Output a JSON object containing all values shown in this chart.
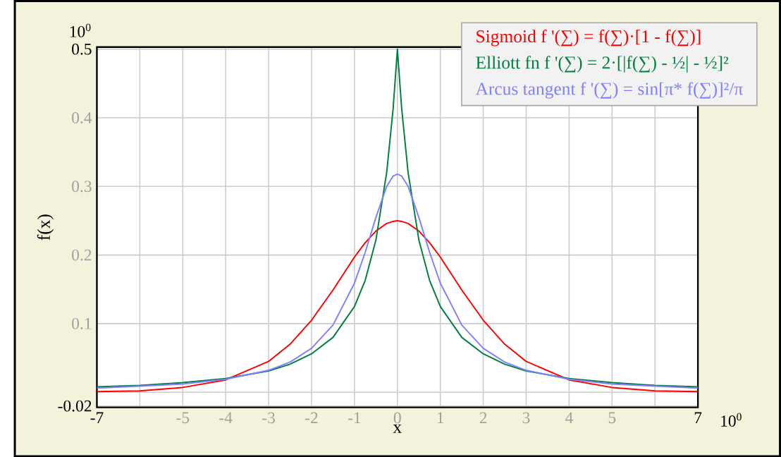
{
  "chart_data": {
    "type": "line",
    "xlabel": "x",
    "ylabel": "f(x)",
    "x": [
      -7,
      -6,
      -5,
      -4,
      -3,
      -2.5,
      -2,
      -1.5,
      -1,
      -0.75,
      -0.5,
      -0.25,
      -0.1,
      0,
      0.1,
      0.25,
      0.5,
      0.75,
      1,
      1.5,
      2,
      2.5,
      3,
      4,
      5,
      6,
      7
    ],
    "series": [
      {
        "name": "Sigmoid f '(∑) = f(∑)·[1 - f(∑)]",
        "color": "#ff0000",
        "values": [
          0.001,
          0.002,
          0.007,
          0.018,
          0.045,
          0.07,
          0.105,
          0.149,
          0.197,
          0.218,
          0.235,
          0.246,
          0.249,
          0.25,
          0.249,
          0.246,
          0.235,
          0.218,
          0.197,
          0.149,
          0.105,
          0.07,
          0.045,
          0.018,
          0.007,
          0.002,
          0.001
        ]
      },
      {
        "name": "Elliott fn  f '(∑) = 2·[|f(∑) - ½| - ½]²",
        "color": "#007f3f",
        "values": [
          0.008,
          0.01,
          0.014,
          0.02,
          0.031,
          0.041,
          0.056,
          0.08,
          0.125,
          0.163,
          0.222,
          0.32,
          0.413,
          0.5,
          0.413,
          0.32,
          0.222,
          0.163,
          0.125,
          0.08,
          0.056,
          0.041,
          0.031,
          0.02,
          0.014,
          0.01,
          0.008
        ]
      },
      {
        "name": "Arcus tangent f '(∑) = sin[π* f(∑)]²/π",
        "color": "#8080ff",
        "values": [
          0.006,
          0.009,
          0.012,
          0.019,
          0.032,
          0.044,
          0.064,
          0.098,
          0.159,
          0.204,
          0.255,
          0.3,
          0.315,
          0.318,
          0.315,
          0.3,
          0.255,
          0.204,
          0.159,
          0.098,
          0.064,
          0.044,
          0.032,
          0.019,
          0.012,
          0.009,
          0.006
        ]
      }
    ],
    "xlim": [
      -7,
      7
    ],
    "xticks": [
      -7,
      {
        "value": -6,
        "label": null
      },
      -5,
      -4,
      -3,
      -2,
      -1,
      0,
      1,
      2,
      3,
      4,
      5,
      {
        "value": 6,
        "label": null
      },
      7
    ],
    "ylim": [
      -0.022,
      0.503
    ],
    "yticks": [
      -0.02,
      {
        "value": 0,
        "label": null
      },
      0.1,
      0.2,
      0.3,
      0.4,
      0.5
    ],
    "grid": true,
    "legend": "top right",
    "line_style": "solid",
    "annotations": [
      "10$^{0}$",
      "10$^{0}$"
    ]
  }
}
